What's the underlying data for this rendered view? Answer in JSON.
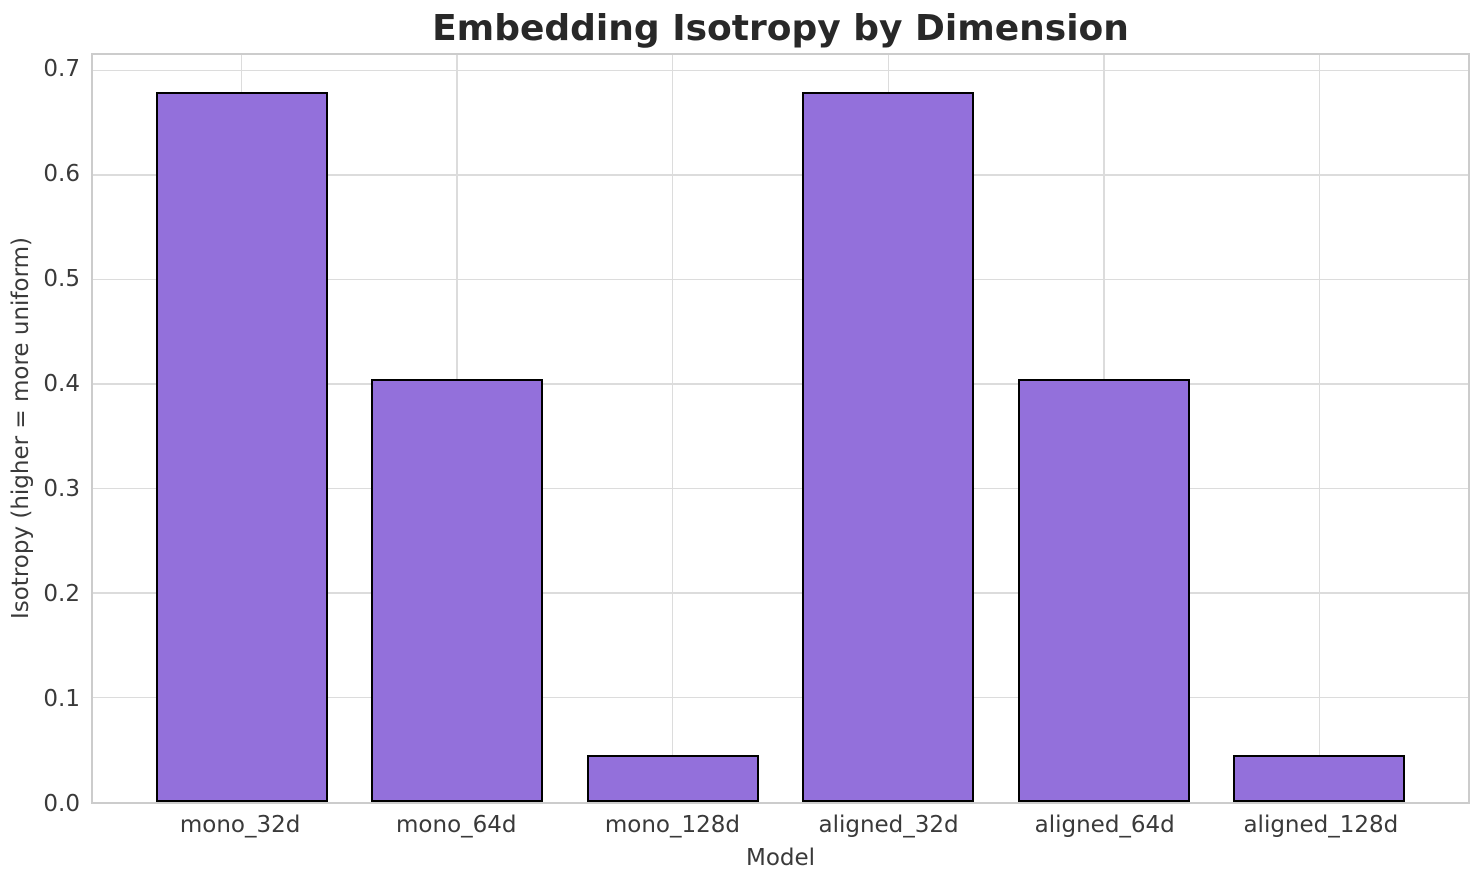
{
  "chart_data": {
    "type": "bar",
    "title": "Embedding Isotropy by Dimension",
    "xlabel": "Model",
    "ylabel": "Isotropy (higher = more uniform)",
    "categories": [
      "mono_32d",
      "mono_64d",
      "mono_128d",
      "aligned_32d",
      "aligned_64d",
      "aligned_128d"
    ],
    "values": [
      0.68,
      0.405,
      0.045,
      0.68,
      0.405,
      0.045
    ],
    "ylim": [
      0,
      0.715
    ],
    "ytick_labels": [
      "0.0",
      "0.1",
      "0.2",
      "0.3",
      "0.4",
      "0.5",
      "0.6",
      "0.7"
    ],
    "grid": true,
    "legend": "none",
    "bar_width_fraction": 0.8,
    "colors": {
      "bar_fill": "#9370DB",
      "bar_edge": "#000000",
      "grid": "#DCDCDC",
      "spine": "#CCCCCC",
      "text": "#3A3A3A",
      "title_text": "#282828",
      "background": "#FFFFFF"
    }
  }
}
